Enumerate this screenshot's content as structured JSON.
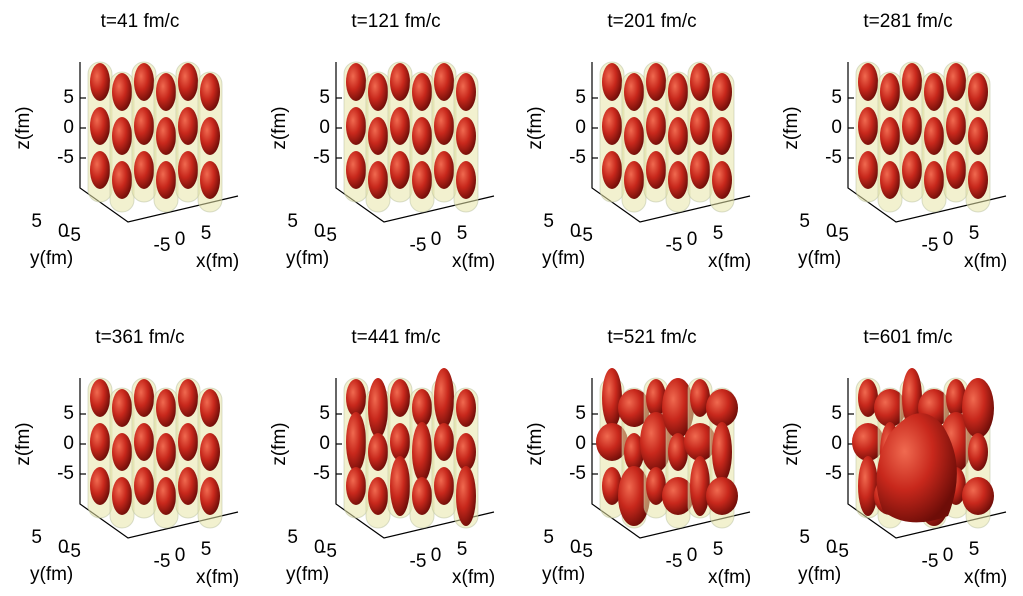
{
  "panels": [
    {
      "title": "t=41 fm/c",
      "z_label": "z(fm)",
      "z_ticks": [
        "5",
        "0",
        "-5"
      ],
      "y_label": "y(fm)",
      "y_ticks": [
        "5",
        "0",
        "-5"
      ],
      "x_label": "x(fm)",
      "x_ticks": [
        "-5",
        "0",
        "5"
      ]
    },
    {
      "title": "t=121 fm/c",
      "z_label": "z(fm)",
      "z_ticks": [
        "5",
        "0",
        "-5"
      ],
      "y_label": "y(fm)",
      "y_ticks": [
        "5",
        "0",
        "-5"
      ],
      "x_label": "x(fm)",
      "x_ticks": [
        "-5",
        "0",
        "5"
      ]
    },
    {
      "title": "t=201 fm/c",
      "z_label": "z(fm)",
      "z_ticks": [
        "5",
        "0",
        "-5"
      ],
      "y_label": "y(fm)",
      "y_ticks": [
        "5",
        "0",
        "-5"
      ],
      "x_label": "x(fm)",
      "x_ticks": [
        "-5",
        "0",
        "5"
      ]
    },
    {
      "title": "t=281 fm/c",
      "z_label": "z(fm)",
      "z_ticks": [
        "5",
        "0",
        "-5"
      ],
      "y_label": "y(fm)",
      "y_ticks": [
        "5",
        "0",
        "-5"
      ],
      "x_label": "x(fm)",
      "x_ticks": [
        "-5",
        "0",
        "5"
      ]
    },
    {
      "title": "t=361 fm/c",
      "z_label": "z(fm)",
      "z_ticks": [
        "5",
        "0",
        "-5"
      ],
      "y_label": "y(fm)",
      "y_ticks": [
        "5",
        "0",
        "-5"
      ],
      "x_label": "x(fm)",
      "x_ticks": [
        "-5",
        "0",
        "5"
      ]
    },
    {
      "title": "t=441 fm/c",
      "z_label": "z(fm)",
      "z_ticks": [
        "5",
        "0",
        "-5"
      ],
      "y_label": "y(fm)",
      "y_ticks": [
        "5",
        "0",
        "-5"
      ],
      "x_label": "x(fm)",
      "x_ticks": [
        "-5",
        "0",
        "5"
      ]
    },
    {
      "title": "t=521 fm/c",
      "z_label": "z(fm)",
      "z_ticks": [
        "5",
        "0",
        "-5"
      ],
      "y_label": "y(fm)",
      "y_ticks": [
        "5",
        "0",
        "-5"
      ],
      "x_label": "x(fm)",
      "x_ticks": [
        "-5",
        "0",
        "5"
      ]
    },
    {
      "title": "t=601 fm/c",
      "z_label": "z(fm)",
      "z_ticks": [
        "5",
        "0",
        "-5"
      ],
      "y_label": "y(fm)",
      "y_ticks": [
        "5",
        "0",
        "-5"
      ],
      "x_label": "x(fm)",
      "x_ticks": [
        "-5",
        "0",
        "5"
      ]
    }
  ]
}
